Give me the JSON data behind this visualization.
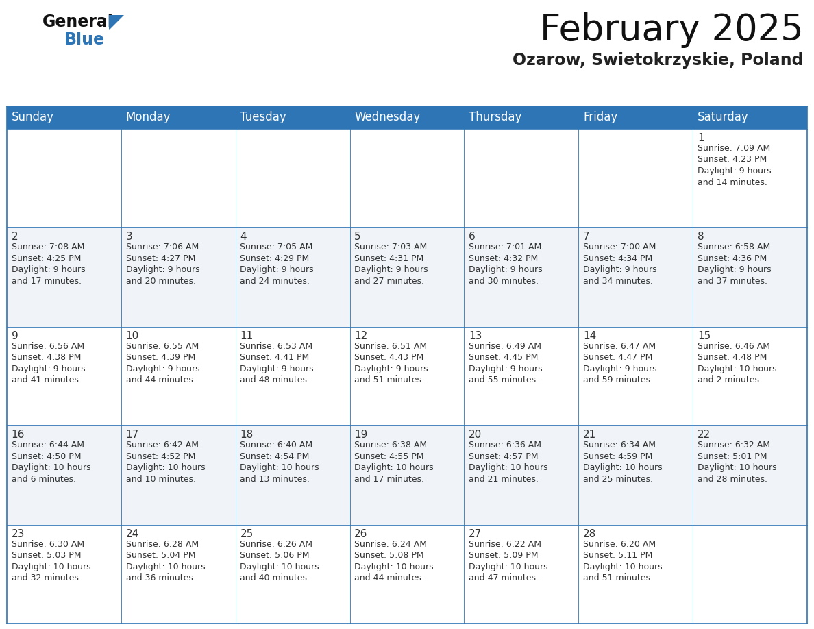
{
  "title": "February 2025",
  "subtitle": "Ozarow, Swietokrzyskie, Poland",
  "header_bg": "#2E75B6",
  "header_text": "#FFFFFF",
  "cell_bg_odd": "#FFFFFF",
  "cell_bg_even": "#F0F4F8",
  "text_color": "#333333",
  "border_color": "#2E75B6",
  "days_of_week": [
    "Sunday",
    "Monday",
    "Tuesday",
    "Wednesday",
    "Thursday",
    "Friday",
    "Saturday"
  ],
  "calendar_data": [
    [
      {
        "day": null,
        "info": null
      },
      {
        "day": null,
        "info": null
      },
      {
        "day": null,
        "info": null
      },
      {
        "day": null,
        "info": null
      },
      {
        "day": null,
        "info": null
      },
      {
        "day": null,
        "info": null
      },
      {
        "day": "1",
        "info": "Sunrise: 7:09 AM\nSunset: 4:23 PM\nDaylight: 9 hours\nand 14 minutes."
      }
    ],
    [
      {
        "day": "2",
        "info": "Sunrise: 7:08 AM\nSunset: 4:25 PM\nDaylight: 9 hours\nand 17 minutes."
      },
      {
        "day": "3",
        "info": "Sunrise: 7:06 AM\nSunset: 4:27 PM\nDaylight: 9 hours\nand 20 minutes."
      },
      {
        "day": "4",
        "info": "Sunrise: 7:05 AM\nSunset: 4:29 PM\nDaylight: 9 hours\nand 24 minutes."
      },
      {
        "day": "5",
        "info": "Sunrise: 7:03 AM\nSunset: 4:31 PM\nDaylight: 9 hours\nand 27 minutes."
      },
      {
        "day": "6",
        "info": "Sunrise: 7:01 AM\nSunset: 4:32 PM\nDaylight: 9 hours\nand 30 minutes."
      },
      {
        "day": "7",
        "info": "Sunrise: 7:00 AM\nSunset: 4:34 PM\nDaylight: 9 hours\nand 34 minutes."
      },
      {
        "day": "8",
        "info": "Sunrise: 6:58 AM\nSunset: 4:36 PM\nDaylight: 9 hours\nand 37 minutes."
      }
    ],
    [
      {
        "day": "9",
        "info": "Sunrise: 6:56 AM\nSunset: 4:38 PM\nDaylight: 9 hours\nand 41 minutes."
      },
      {
        "day": "10",
        "info": "Sunrise: 6:55 AM\nSunset: 4:39 PM\nDaylight: 9 hours\nand 44 minutes."
      },
      {
        "day": "11",
        "info": "Sunrise: 6:53 AM\nSunset: 4:41 PM\nDaylight: 9 hours\nand 48 minutes."
      },
      {
        "day": "12",
        "info": "Sunrise: 6:51 AM\nSunset: 4:43 PM\nDaylight: 9 hours\nand 51 minutes."
      },
      {
        "day": "13",
        "info": "Sunrise: 6:49 AM\nSunset: 4:45 PM\nDaylight: 9 hours\nand 55 minutes."
      },
      {
        "day": "14",
        "info": "Sunrise: 6:47 AM\nSunset: 4:47 PM\nDaylight: 9 hours\nand 59 minutes."
      },
      {
        "day": "15",
        "info": "Sunrise: 6:46 AM\nSunset: 4:48 PM\nDaylight: 10 hours\nand 2 minutes."
      }
    ],
    [
      {
        "day": "16",
        "info": "Sunrise: 6:44 AM\nSunset: 4:50 PM\nDaylight: 10 hours\nand 6 minutes."
      },
      {
        "day": "17",
        "info": "Sunrise: 6:42 AM\nSunset: 4:52 PM\nDaylight: 10 hours\nand 10 minutes."
      },
      {
        "day": "18",
        "info": "Sunrise: 6:40 AM\nSunset: 4:54 PM\nDaylight: 10 hours\nand 13 minutes."
      },
      {
        "day": "19",
        "info": "Sunrise: 6:38 AM\nSunset: 4:55 PM\nDaylight: 10 hours\nand 17 minutes."
      },
      {
        "day": "20",
        "info": "Sunrise: 6:36 AM\nSunset: 4:57 PM\nDaylight: 10 hours\nand 21 minutes."
      },
      {
        "day": "21",
        "info": "Sunrise: 6:34 AM\nSunset: 4:59 PM\nDaylight: 10 hours\nand 25 minutes."
      },
      {
        "day": "22",
        "info": "Sunrise: 6:32 AM\nSunset: 5:01 PM\nDaylight: 10 hours\nand 28 minutes."
      }
    ],
    [
      {
        "day": "23",
        "info": "Sunrise: 6:30 AM\nSunset: 5:03 PM\nDaylight: 10 hours\nand 32 minutes."
      },
      {
        "day": "24",
        "info": "Sunrise: 6:28 AM\nSunset: 5:04 PM\nDaylight: 10 hours\nand 36 minutes."
      },
      {
        "day": "25",
        "info": "Sunrise: 6:26 AM\nSunset: 5:06 PM\nDaylight: 10 hours\nand 40 minutes."
      },
      {
        "day": "26",
        "info": "Sunrise: 6:24 AM\nSunset: 5:08 PM\nDaylight: 10 hours\nand 44 minutes."
      },
      {
        "day": "27",
        "info": "Sunrise: 6:22 AM\nSunset: 5:09 PM\nDaylight: 10 hours\nand 47 minutes."
      },
      {
        "day": "28",
        "info": "Sunrise: 6:20 AM\nSunset: 5:11 PM\nDaylight: 10 hours\nand 51 minutes."
      },
      {
        "day": null,
        "info": null
      }
    ]
  ],
  "title_fontsize": 38,
  "subtitle_fontsize": 17,
  "header_fontsize": 12,
  "day_num_fontsize": 11,
  "info_fontsize": 9
}
